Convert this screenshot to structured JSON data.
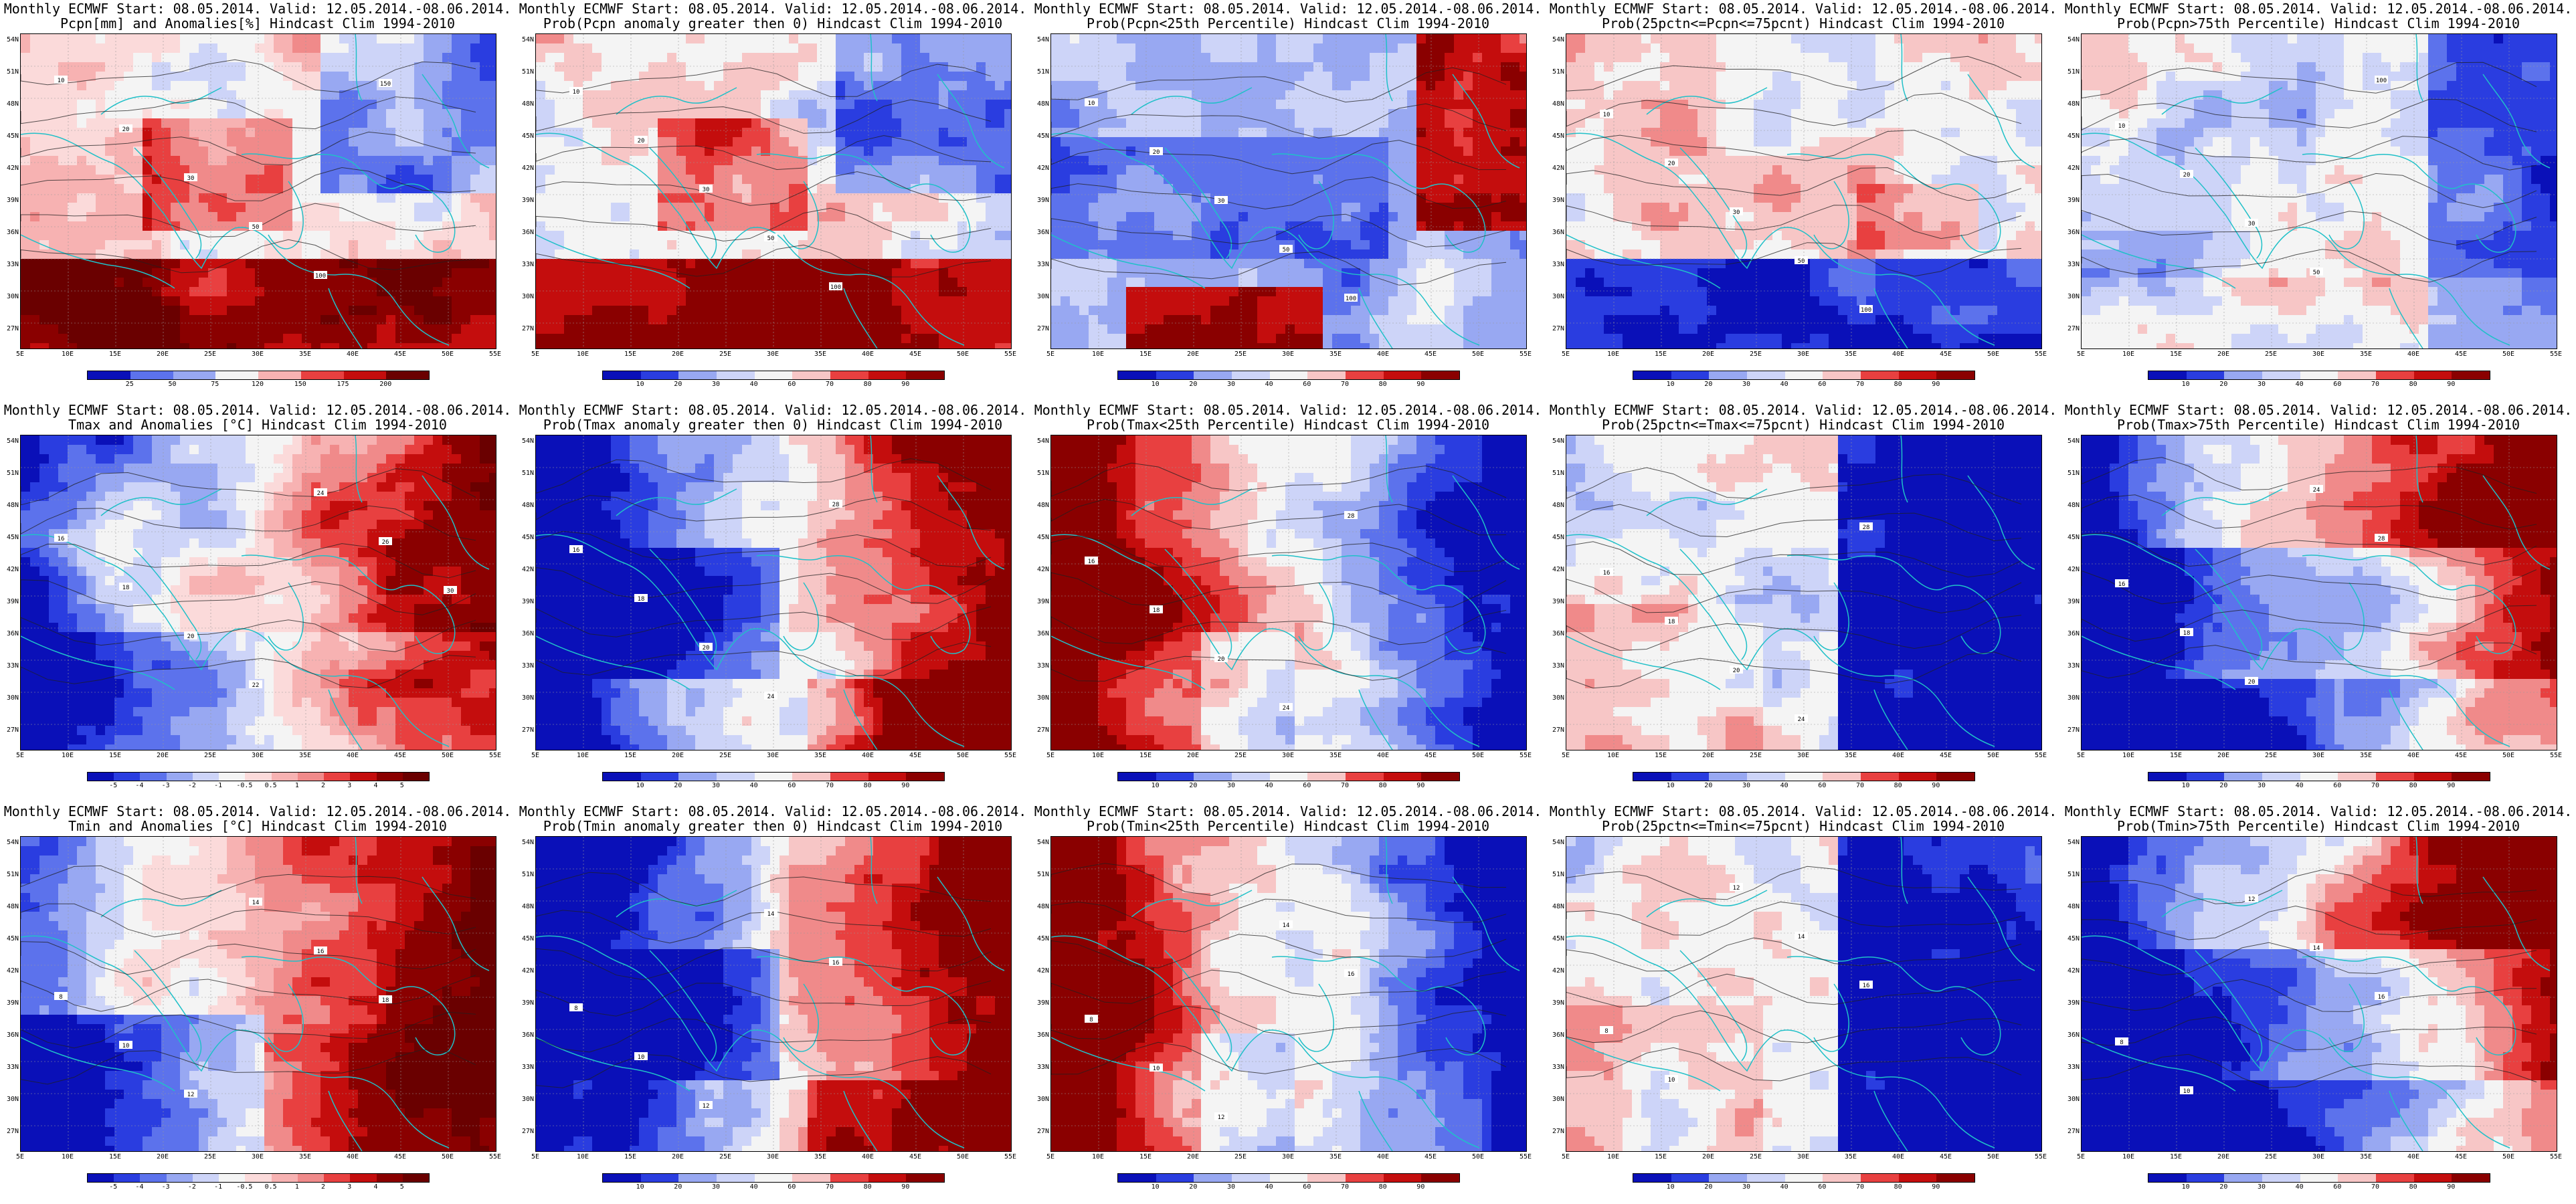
{
  "panels": [
    {
      "title1": "Monthly ECMWF Start: 08.05.2014. Valid: 12.05.2014.-08.06.2014.",
      "title2": "Pcpn[mm] and Anomalies[%] Hindcast Clim 1994-2010",
      "legend": [
        "25",
        "50",
        "75",
        "120",
        "150",
        "175",
        "200"
      ],
      "scheme": "anom",
      "pattern": "pcpn",
      "contours": [
        "10",
        "20",
        "30",
        "50",
        "100",
        "150"
      ]
    },
    {
      "title1": "Monthly ECMWF Start: 08.05.2014. Valid: 12.05.2014.-08.06.2014.",
      "title2": "Prob(Pcpn anomaly greater then 0) Hindcast Clim 1994-2010",
      "legend": [
        "10",
        "20",
        "30",
        "40",
        "60",
        "70",
        "80",
        "90"
      ],
      "scheme": "prob",
      "pattern": "pcpn",
      "contours": [
        "10",
        "20",
        "30",
        "50",
        "100"
      ]
    },
    {
      "title1": "Monthly ECMWF Start: 08.05.2014. Valid: 12.05.2014.-08.06.2014.",
      "title2": "Prob(Pcpn<25th Percentile) Hindcast Clim 1994-2010",
      "legend": [
        "10",
        "20",
        "30",
        "40",
        "60",
        "70",
        "80",
        "90"
      ],
      "scheme": "prob",
      "pattern": "pcpnlow",
      "contours": [
        "10",
        "20",
        "30",
        "50",
        "100"
      ]
    },
    {
      "title1": "Monthly ECMWF Start: 08.05.2014. Valid: 12.05.2014.-08.06.2014.",
      "title2": "Prob(25pctn<=Pcpn<=75pcnt) Hindcast Clim 1994-2010",
      "legend": [
        "10",
        "20",
        "30",
        "40",
        "60",
        "70",
        "80",
        "90"
      ],
      "scheme": "prob",
      "pattern": "pcpnmid",
      "contours": [
        "10",
        "20",
        "30",
        "50",
        "100"
      ]
    },
    {
      "title1": "Monthly ECMWF Start: 08.05.2014. Valid: 12.05.2014.-08.06.2014.",
      "title2": "Prob(Pcpn>75th Percentile) Hindcast Clim 1994-2010",
      "legend": [
        "10",
        "20",
        "30",
        "40",
        "60",
        "70",
        "80",
        "90"
      ],
      "scheme": "prob",
      "pattern": "pcpnhigh",
      "contours": [
        "10",
        "20",
        "30",
        "50",
        "100"
      ]
    },
    {
      "title1": "Monthly ECMWF Start: 08.05.2014. Valid: 12.05.2014.-08.06.2014.",
      "title2": "Tmax and Anomalies [°C] Hindcast Clim 1994-2010",
      "legend": [
        "-5",
        "-4",
        "-3",
        "-2",
        "-1",
        "-0.5",
        "0.5",
        "1",
        "2",
        "3",
        "4",
        "5"
      ],
      "scheme": "anom",
      "pattern": "twarm",
      "contours": [
        "16",
        "18",
        "20",
        "22",
        "24",
        "26",
        "30"
      ]
    },
    {
      "title1": "Monthly ECMWF Start: 08.05.2014. Valid: 12.05.2014.-08.06.2014.",
      "title2": "Prob(Tmax anomaly greater then 0) Hindcast Clim 1994-2010",
      "legend": [
        "10",
        "20",
        "30",
        "40",
        "60",
        "70",
        "80",
        "90"
      ],
      "scheme": "prob",
      "pattern": "twarmstrong",
      "contours": [
        "16",
        "18",
        "20",
        "24",
        "28"
      ]
    },
    {
      "title1": "Monthly ECMWF Start: 08.05.2014. Valid: 12.05.2014.-08.06.2014.",
      "title2": "Prob(Tmax<25th Percentile) Hindcast Clim 1994-2010",
      "legend": [
        "10",
        "20",
        "30",
        "40",
        "60",
        "70",
        "80",
        "90"
      ],
      "scheme": "prob",
      "pattern": "tcold",
      "contours": [
        "16",
        "18",
        "20",
        "24",
        "28"
      ]
    },
    {
      "title1": "Monthly ECMWF Start: 08.05.2014. Valid: 12.05.2014.-08.06.2014.",
      "title2": "Prob(25pctn<=Tmax<=75pcnt) Hindcast Clim 1994-2010",
      "legend": [
        "10",
        "20",
        "30",
        "40",
        "60",
        "70",
        "80",
        "90"
      ],
      "scheme": "prob",
      "pattern": "tmid",
      "contours": [
        "16",
        "18",
        "20",
        "24",
        "28"
      ]
    },
    {
      "title1": "Monthly ECMWF Start: 08.05.2014. Valid: 12.05.2014.-08.06.2014.",
      "title2": "Prob(Tmax>75th Percentile) Hindcast Clim 1994-2010",
      "legend": [
        "10",
        "20",
        "30",
        "40",
        "60",
        "70",
        "80",
        "90"
      ],
      "scheme": "prob",
      "pattern": "thigh",
      "contours": [
        "16",
        "18",
        "20",
        "24",
        "28"
      ]
    },
    {
      "title1": "Monthly ECMWF Start: 08.05.2014. Valid: 12.05.2014.-08.06.2014.",
      "title2": "Tmin and Anomalies [°C] Hindcast Clim 1994-2010",
      "legend": [
        "-5",
        "-4",
        "-3",
        "-2",
        "-1",
        "-0.5",
        "0.5",
        "1",
        "2",
        "3",
        "4",
        "5"
      ],
      "scheme": "anom",
      "pattern": "tminwarm",
      "contours": [
        "8",
        "10",
        "12",
        "14",
        "16",
        "18"
      ]
    },
    {
      "title1": "Monthly ECMWF Start: 08.05.2014. Valid: 12.05.2014.-08.06.2014.",
      "title2": "Prob(Tmin anomaly greater then 0) Hindcast Clim 1994-2010",
      "legend": [
        "10",
        "20",
        "30",
        "40",
        "60",
        "70",
        "80",
        "90"
      ],
      "scheme": "prob",
      "pattern": "twarmstrong",
      "contours": [
        "8",
        "10",
        "12",
        "14",
        "16"
      ]
    },
    {
      "title1": "Monthly ECMWF Start: 08.05.2014. Valid: 12.05.2014.-08.06.2014.",
      "title2": "Prob(Tmin<25th Percentile) Hindcast Clim 1994-2010",
      "legend": [
        "10",
        "20",
        "30",
        "40",
        "60",
        "70",
        "80",
        "90"
      ],
      "scheme": "prob",
      "pattern": "tcold",
      "contours": [
        "8",
        "10",
        "12",
        "14",
        "16"
      ]
    },
    {
      "title1": "Monthly ECMWF Start: 08.05.2014. Valid: 12.05.2014.-08.06.2014.",
      "title2": "Prob(25pctn<=Tmin<=75pcnt) Hindcast Clim 1994-2010",
      "legend": [
        "10",
        "20",
        "30",
        "40",
        "60",
        "70",
        "80",
        "90"
      ],
      "scheme": "prob",
      "pattern": "tmid",
      "contours": [
        "8",
        "10",
        "12",
        "14",
        "16"
      ]
    },
    {
      "title1": "Monthly ECMWF Start: 08.05.2014. Valid: 12.05.2014.-08.06.2014.",
      "title2": "Prob(Tmin>75th Percentile) Hindcast Clim 1994-2010",
      "legend": [
        "10",
        "20",
        "30",
        "40",
        "60",
        "70",
        "80",
        "90"
      ],
      "scheme": "prob",
      "pattern": "thigh",
      "contours": [
        "8",
        "10",
        "12",
        "14",
        "16"
      ]
    }
  ],
  "lat_labels": [
    "54N",
    "51N",
    "48N",
    "45N",
    "42N",
    "39N",
    "36N",
    "33N",
    "30N",
    "27N"
  ],
  "lon_labels": [
    "5E",
    "10E",
    "15E",
    "20E",
    "25E",
    "30E",
    "35E",
    "40E",
    "45E",
    "50E",
    "55E"
  ],
  "colors": {
    "prob_scale": [
      "#0a10b8",
      "#2a3de0",
      "#5c72ec",
      "#98a8f2",
      "#cdd4f8",
      "#f4f4f4",
      "#f7c6c6",
      "#f08a8a",
      "#e84040",
      "#c40d0d",
      "#8a0000"
    ],
    "anom_scale": [
      "#0a10b8",
      "#2a3de0",
      "#5c72ec",
      "#98a8f2",
      "#cdd4f8",
      "#f4f4f4",
      "#fbdada",
      "#f7b2b2",
      "#f08a8a",
      "#e84040",
      "#c40d0d",
      "#8a0000",
      "#6a0000"
    ],
    "coastline": "#20c0c8",
    "contour": "#202020"
  }
}
